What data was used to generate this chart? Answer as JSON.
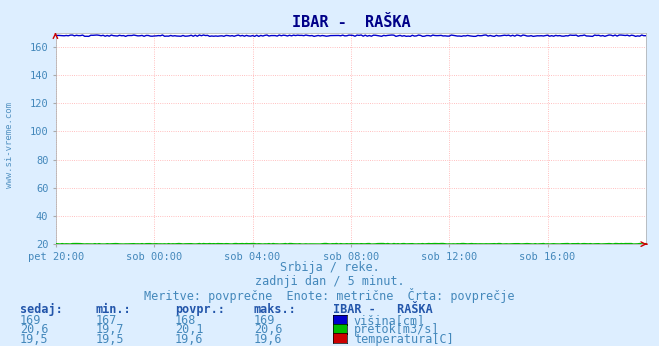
{
  "title": "IBAR -  RAŠKA",
  "title_fontsize": 11,
  "bg_color": "#ddeeff",
  "plot_bg_color": "#ffffff",
  "grid_color": "#ffaaaa",
  "xlim": [
    0,
    288
  ],
  "ylim": [
    20,
    170
  ],
  "yticks": [
    20,
    40,
    60,
    80,
    100,
    120,
    140,
    160
  ],
  "xtick_labels": [
    "pet 20:00",
    "sob 00:00",
    "sob 04:00",
    "sob 08:00",
    "sob 12:00",
    "sob 16:00"
  ],
  "xtick_positions": [
    0,
    48,
    96,
    144,
    192,
    240
  ],
  "line_visina_value": 168,
  "line_pretok_value": 20.1,
  "line_temp_value": 19.6,
  "line_visina_color": "#0000cc",
  "line_pretok_color": "#00bb00",
  "line_temp_color": "#cc0000",
  "watermark": "www.si-vreme.com",
  "subtitle1": "Srbija / reke.",
  "subtitle2": "zadnji dan / 5 minut.",
  "subtitle3": "Meritve: povprečne  Enote: metrične  Črta: povprečje",
  "table_header_row": [
    "sedaj:",
    "min.:",
    "povpr.:",
    "maks.:",
    "IBAR -   RAŠKA"
  ],
  "table_row1": [
    "169",
    "167",
    "168",
    "169"
  ],
  "table_row2": [
    "20,6",
    "19,7",
    "20,1",
    "20,6"
  ],
  "table_row3": [
    "19,5",
    "19,5",
    "19,6",
    "19,6"
  ],
  "table_label1": "višina[cm]",
  "table_label2": "pretok[m3/s]",
  "table_label3": "temperatura[C]",
  "text_color": "#4488bb",
  "header_color": "#2255aa",
  "title_color": "#000088",
  "axis_label_fontsize": 7.5,
  "subtitle_fontsize": 8.5,
  "table_fontsize": 8.5,
  "arrow_color": "#cc0000",
  "spine_color": "#aaaaaa"
}
